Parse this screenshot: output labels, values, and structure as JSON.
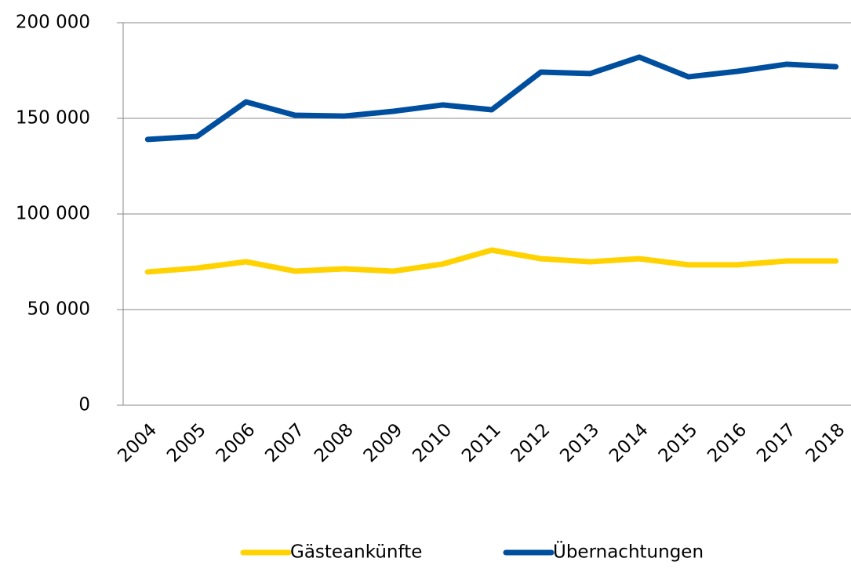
{
  "chart_data": {
    "type": "line",
    "categories": [
      "2004",
      "2005",
      "2006",
      "2007",
      "2008",
      "2009",
      "2010",
      "2011",
      "2012",
      "2013",
      "2014",
      "2015",
      "2016",
      "2017",
      "2018"
    ],
    "series": [
      {
        "name": "Gästeankünfte",
        "color": "#ffd200",
        "values": [
          69700,
          71700,
          75000,
          70100,
          71300,
          70100,
          73800,
          81100,
          76600,
          75000,
          76600,
          73400,
          73400,
          75400,
          75400
        ]
      },
      {
        "name": "Übernachtungen",
        "color": "#004f9f",
        "values": [
          139000,
          140500,
          158600,
          151600,
          151200,
          153700,
          157000,
          154500,
          174200,
          173400,
          182000,
          171700,
          174600,
          178300,
          177000
        ]
      }
    ],
    "ylim": [
      0,
      200000
    ],
    "yticks": [
      0,
      {
        "value": 50000,
        "label": "50 000"
      },
      {
        "value": 100000,
        "label": "100 000"
      },
      {
        "value": 150000,
        "label": "150 000"
      },
      {
        "value": 200000,
        "label": "200 000"
      }
    ],
    "grid": true,
    "legend": "bottom"
  }
}
